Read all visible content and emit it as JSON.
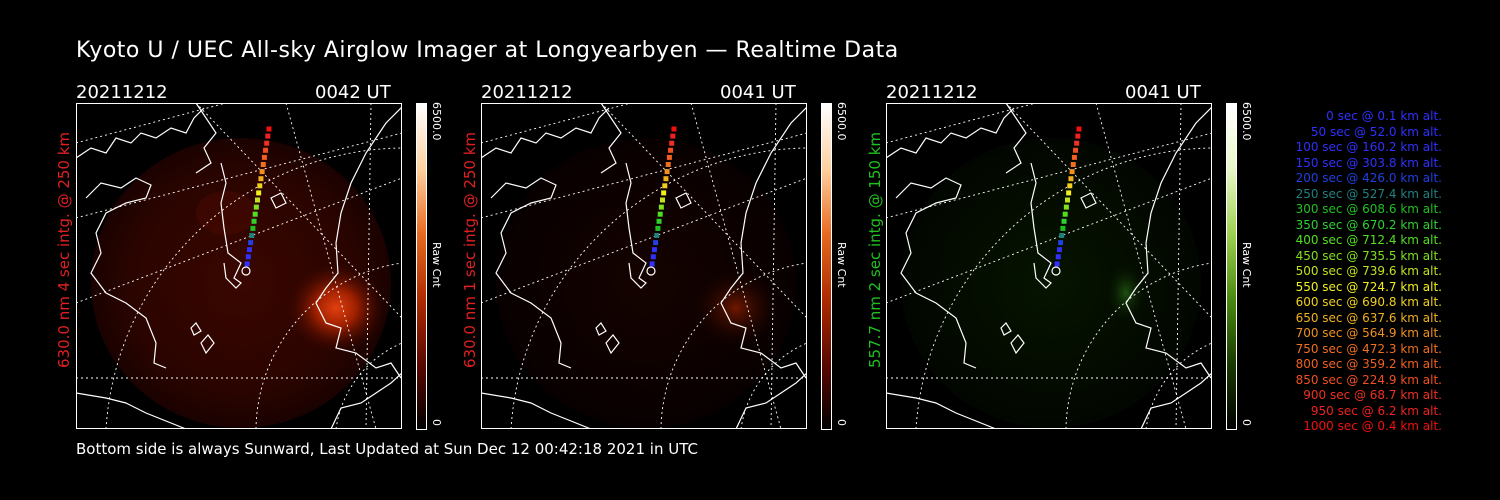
{
  "title": "Kyoto U / UEC All-sky Airglow Imager at Longyearbyen — Realtime Data",
  "footer": "Bottom side is always Sunward, Last Updated at Sun Dec 12 00:42:18 2021 in UTC",
  "panels": [
    {
      "date": "20211212",
      "time": "0042  UT",
      "label": "630.0 nm 4 sec intg. @ 250 km",
      "label_color": "#e02020",
      "colorbar": {
        "max": "6500.0",
        "min": "0",
        "unit": "Raw Cnt",
        "gradient": [
          "#000000",
          "#5a0800",
          "#b02a00",
          "#e86a20",
          "#ffd0a0",
          "#ffffff"
        ]
      }
    },
    {
      "date": "20211212",
      "time": "0041  UT",
      "label": "630.0 nm 1 sec intg. @ 250 km",
      "label_color": "#e02020",
      "colorbar": {
        "max": "6500.0",
        "min": "0",
        "unit": "Raw Cnt",
        "gradient": [
          "#000000",
          "#5a0800",
          "#b02a00",
          "#e86a20",
          "#ffd0a0",
          "#ffffff"
        ]
      }
    },
    {
      "date": "20211212",
      "time": "0041  UT",
      "label": "557.7 nm 2 sec intg. @ 150 km",
      "label_color": "#20c020",
      "colorbar": {
        "max": "6500.0",
        "min": "0",
        "unit": "Raw Cnt",
        "gradient": [
          "#000000",
          "#1a3a00",
          "#4a8a10",
          "#9ed050",
          "#e8f8c8",
          "#ffffff"
        ]
      }
    }
  ],
  "legend": [
    {
      "text": "0 sec @    0.1 km alt.",
      "color": "#3030ff"
    },
    {
      "text": "50 sec @   52.0 km alt.",
      "color": "#3030ff"
    },
    {
      "text": "100 sec @  160.2 km alt.",
      "color": "#3030ff"
    },
    {
      "text": "150 sec @  303.8 km alt.",
      "color": "#3030ff"
    },
    {
      "text": "200 sec @  426.0 km alt.",
      "color": "#2040e0"
    },
    {
      "text": "250 sec @  527.4 km alt.",
      "color": "#208080"
    },
    {
      "text": "300 sec @  608.6 km alt.",
      "color": "#20c020"
    },
    {
      "text": "350 sec @  670.2 km alt.",
      "color": "#30d030"
    },
    {
      "text": "400 sec @  712.4 km alt.",
      "color": "#50e020"
    },
    {
      "text": "450 sec @  735.5 km alt.",
      "color": "#80e020"
    },
    {
      "text": "500 sec @  739.6 km alt.",
      "color": "#c0e020"
    },
    {
      "text": "550 sec @  724.7 km alt.",
      "color": "#f0f020"
    },
    {
      "text": "600 sec @  690.8 km alt.",
      "color": "#f0d020"
    },
    {
      "text": "650 sec @  637.6 km alt.",
      "color": "#f0b020"
    },
    {
      "text": "700 sec @  564.9 km alt.",
      "color": "#f09020"
    },
    {
      "text": "750 sec @  472.3 km alt.",
      "color": "#f07020"
    },
    {
      "text": "800 sec @  359.2 km alt.",
      "color": "#f06020"
    },
    {
      "text": "850 sec @  224.9 km alt.",
      "color": "#f05020"
    },
    {
      "text": "900 sec @   68.7 km alt.",
      "color": "#f03020"
    },
    {
      "text": "950 sec @    6.2 km alt.",
      "color": "#f02020"
    },
    {
      "text": "1000 sec @    0.4 km alt.",
      "color": "#f01010"
    }
  ]
}
